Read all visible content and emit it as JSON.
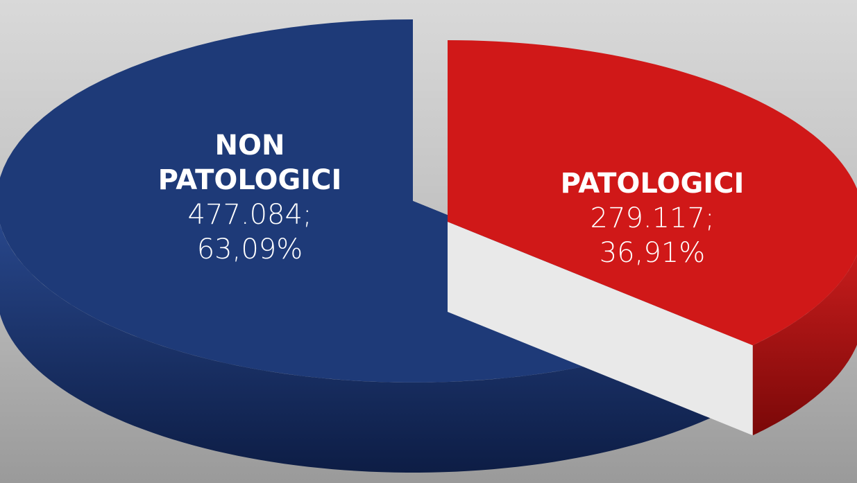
{
  "chart_data": {
    "type": "pie3d",
    "categories": [
      "NON PATOLOGICI",
      "PATOLOGICI"
    ],
    "values": [
      477084,
      279117
    ],
    "value_labels": [
      "477.084;",
      "279.117;"
    ],
    "percentages": [
      63.09,
      36.91
    ],
    "percentage_labels": [
      "63,09%",
      "36,91%"
    ],
    "colors": [
      "#1e3a78",
      "#d01818"
    ]
  }
}
